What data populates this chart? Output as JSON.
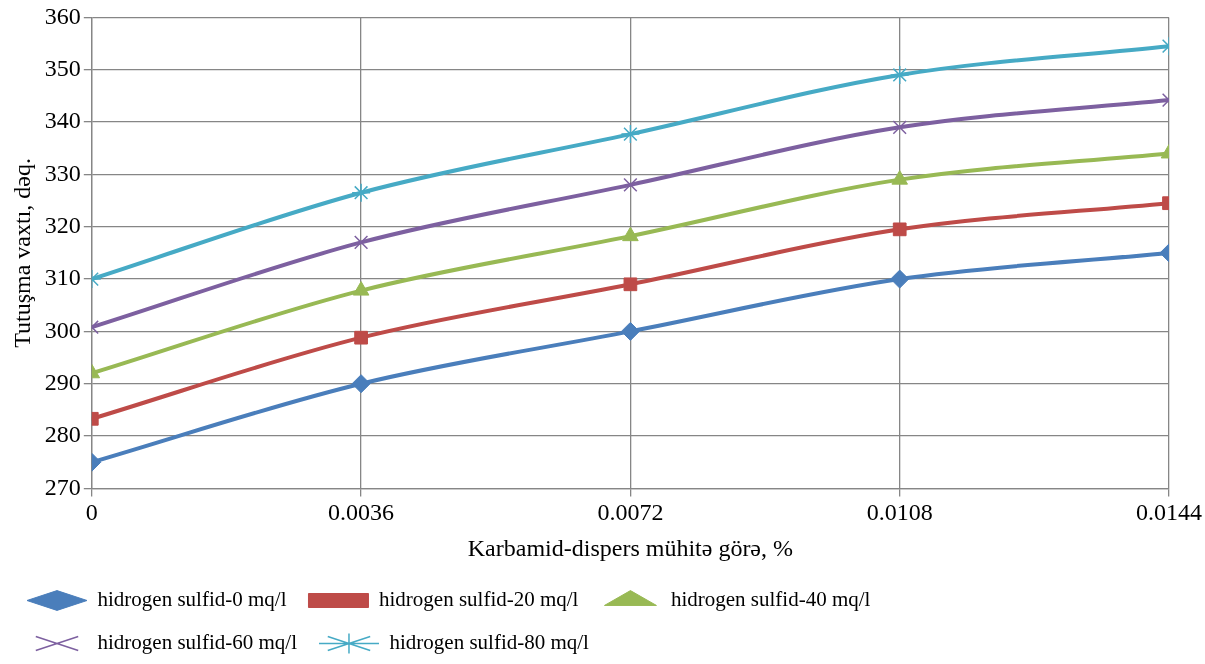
{
  "chart_data": {
    "type": "line",
    "xlabel": "Karbamid-dispers mühitə görə, %",
    "ylabel": "Tutuşma vaxtı, dəq.",
    "x": [
      0,
      0.0036,
      0.0072,
      0.0108,
      0.0144
    ],
    "xlim": [
      0,
      0.0144
    ],
    "xticks": [
      0,
      0.0036,
      0.0072,
      0.0108,
      0.0144
    ],
    "ylim": [
      270,
      360
    ],
    "yticks": [
      270,
      280,
      290,
      300,
      310,
      320,
      330,
      340,
      350,
      360
    ],
    "grid": true,
    "legend": "bottom",
    "series": [
      {
        "name": "hidrogen sulfid-0 mq/l",
        "color": "#4a7ebb",
        "marker": "diamond",
        "values": [
          275,
          290,
          300,
          310,
          315
        ]
      },
      {
        "name": "hidrogen sulfid-20 mq/l",
        "color": "#be4b48",
        "marker": "square",
        "values": [
          283.3,
          298.8,
          309,
          319.5,
          324.5
        ]
      },
      {
        "name": "hidrogen sulfid-40 mq/l",
        "color": "#98b954",
        "marker": "triangle",
        "values": [
          292,
          307.8,
          318.2,
          329,
          334
        ]
      },
      {
        "name": "hidrogen sulfid-60 mq/l",
        "color": "#7d60a0",
        "marker": "cross",
        "values": [
          300.8,
          317,
          328,
          339,
          344.2
        ]
      },
      {
        "name": "hidrogen sulfid-80 mq/l",
        "color": "#46aac5",
        "marker": "cross",
        "values": [
          310,
          326.5,
          337.7,
          349,
          354.5
        ]
      }
    ]
  }
}
